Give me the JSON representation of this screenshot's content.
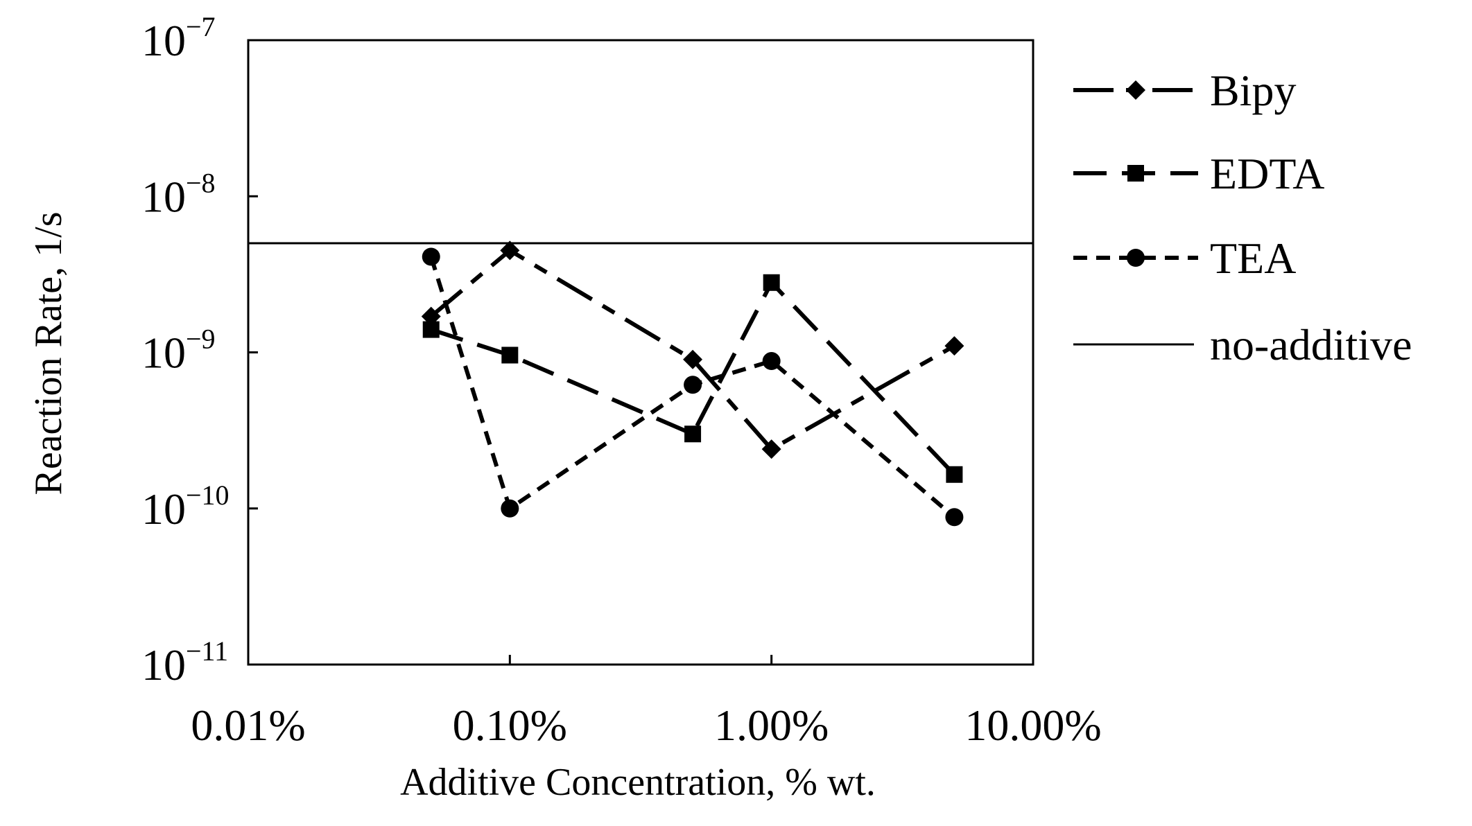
{
  "chart_data": {
    "type": "line",
    "xlabel": "Additive Concentration, % wt.",
    "ylabel": "Reaction Rate, 1/s",
    "xscale": "log",
    "yscale": "log",
    "xlim": [
      0.01,
      10
    ],
    "ylim": [
      1e-11,
      1e-07
    ],
    "x_ticks": [
      {
        "value": 0.01,
        "label": "0.01%"
      },
      {
        "value": 0.1,
        "label": "0.10%"
      },
      {
        "value": 1,
        "label": "1.00%"
      },
      {
        "value": 10,
        "label": "10.00%"
      }
    ],
    "y_ticks": [
      {
        "value": 1e-07,
        "base": "10",
        "exp": "−7"
      },
      {
        "value": 1e-08,
        "base": "10",
        "exp": "−8"
      },
      {
        "value": 1e-09,
        "base": "10",
        "exp": "−9"
      },
      {
        "value": 1e-10,
        "base": "10",
        "exp": "−10"
      },
      {
        "value": 1e-11,
        "base": "10",
        "exp": "−11"
      }
    ],
    "legend_position": "right",
    "series": [
      {
        "name": "Bipy",
        "marker": "diamond",
        "dash": "long-short",
        "x": [
          0.05,
          0.1,
          0.5,
          1,
          5
        ],
        "y": [
          1.7e-09,
          4.5e-09,
          9e-10,
          2.4e-10,
          1.1e-09
        ]
      },
      {
        "name": "EDTA",
        "marker": "square",
        "dash": "long",
        "x": [
          0.05,
          0.1,
          0.5,
          1,
          5
        ],
        "y": [
          1.4e-09,
          9.6e-10,
          3e-10,
          2.8e-09,
          1.65e-10
        ]
      },
      {
        "name": "TEA",
        "marker": "circle",
        "dash": "short",
        "x": [
          0.05,
          0.1,
          0.5,
          1,
          5
        ],
        "y": [
          4.1e-09,
          1e-10,
          6.2e-10,
          8.8e-10,
          8.8e-11
        ]
      }
    ],
    "reference_line": {
      "name": "no-additive",
      "y": 5e-09
    }
  }
}
